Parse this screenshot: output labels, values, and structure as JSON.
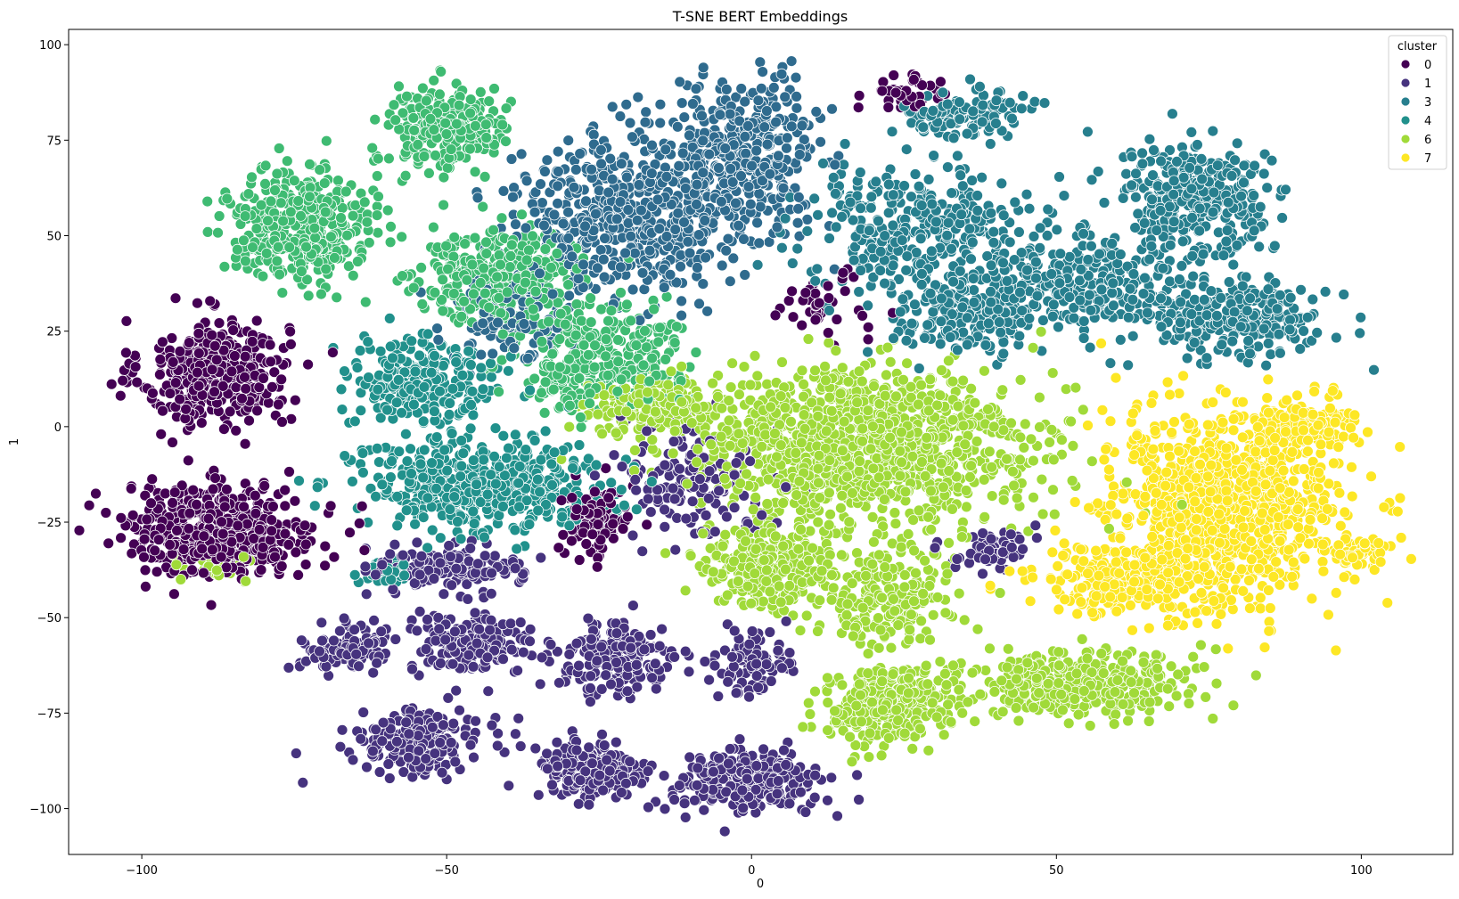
{
  "chart_data": {
    "type": "scatter",
    "title": "T-SNE BERT Embeddings",
    "xlabel": "0",
    "ylabel": "1",
    "xlim": [
      -112,
      115
    ],
    "ylim": [
      -112,
      104
    ],
    "xticks": [
      -100,
      -50,
      0,
      50,
      100
    ],
    "yticks": [
      -100,
      -75,
      -50,
      -25,
      0,
      25,
      50,
      75,
      100
    ],
    "xtick_labels": [
      "−100",
      "−50",
      "0",
      "50",
      "100"
    ],
    "ytick_labels": [
      "−100",
      "−75",
      "−50",
      "−25",
      "0",
      "25",
      "50",
      "75",
      "100"
    ],
    "grid": false,
    "legend": {
      "title": "cluster",
      "placement": "top-right",
      "entries": [
        {
          "label": "0",
          "color": "#440154"
        },
        {
          "label": "1",
          "color": "#46337e"
        },
        {
          "label": "3",
          "color": "#277f8e"
        },
        {
          "label": "4",
          "color": "#21918c"
        },
        {
          "label": "6",
          "color": "#a0da39"
        },
        {
          "label": "7",
          "color": "#fde725"
        }
      ]
    },
    "series": [
      {
        "name": "0",
        "color": "#440154",
        "clusters": [
          {
            "cx": -88,
            "cy": 14,
            "sx": 6,
            "sy": 7,
            "n": 380
          },
          {
            "cx": -87,
            "cy": -27,
            "sx": 8,
            "sy": 6,
            "n": 460
          },
          {
            "cx": -25,
            "cy": -25,
            "sx": 3,
            "sy": 5,
            "n": 90
          },
          {
            "cx": 25,
            "cy": 87,
            "sx": 4,
            "sy": 3,
            "n": 40
          },
          {
            "cx": 12,
            "cy": 32,
            "sx": 4,
            "sy": 4,
            "n": 40
          }
        ]
      },
      {
        "name": "1",
        "color": "#46337e",
        "clusters": [
          {
            "cx": -50,
            "cy": -37,
            "sx": 6,
            "sy": 3,
            "n": 150
          },
          {
            "cx": -66,
            "cy": -58,
            "sx": 4,
            "sy": 3,
            "n": 100
          },
          {
            "cx": -46,
            "cy": -57,
            "sx": 5,
            "sy": 4,
            "n": 170
          },
          {
            "cx": -54,
            "cy": -82,
            "sx": 5,
            "sy": 4,
            "n": 200
          },
          {
            "cx": -27,
            "cy": -90,
            "sx": 4,
            "sy": 4,
            "n": 220
          },
          {
            "cx": -1,
            "cy": -93,
            "sx": 7,
            "sy": 4,
            "n": 270
          },
          {
            "cx": -22,
            "cy": -61,
            "sx": 5,
            "sy": 5,
            "n": 180
          },
          {
            "cx": 0,
            "cy": -62,
            "sx": 3,
            "sy": 4,
            "n": 90
          },
          {
            "cx": -10,
            "cy": -13,
            "sx": 6,
            "sy": 8,
            "n": 150
          },
          {
            "cx": 40,
            "cy": -32,
            "sx": 3,
            "sy": 3,
            "n": 60
          }
        ]
      },
      {
        "name": "3",
        "color": "#2f6b8e",
        "clusters": [
          {
            "cx": -20,
            "cy": 56,
            "sx": 9,
            "sy": 11,
            "n": 600
          },
          {
            "cx": 0,
            "cy": 72,
            "sx": 6,
            "sy": 9,
            "n": 350
          },
          {
            "cx": -40,
            "cy": 30,
            "sx": 5,
            "sy": 6,
            "n": 120
          }
        ]
      },
      {
        "name": "3",
        "color": "#277f8e",
        "clusters": [
          {
            "cx": 28,
            "cy": 52,
            "sx": 10,
            "sy": 8,
            "n": 350
          },
          {
            "cx": 55,
            "cy": 37,
            "sx": 10,
            "sy": 6,
            "n": 300
          },
          {
            "cx": 73,
            "cy": 60,
            "sx": 6,
            "sy": 7,
            "n": 330
          },
          {
            "cx": 80,
            "cy": 28,
            "sx": 7,
            "sy": 5,
            "n": 250
          },
          {
            "cx": 35,
            "cy": 82,
            "sx": 5,
            "sy": 3,
            "n": 120
          },
          {
            "cx": 35,
            "cy": 28,
            "sx": 6,
            "sy": 5,
            "n": 170
          }
        ]
      },
      {
        "name": "4",
        "color": "#21918c",
        "clusters": [
          {
            "cx": -54,
            "cy": 12,
            "sx": 6,
            "sy": 6,
            "n": 250
          },
          {
            "cx": -45,
            "cy": -16,
            "sx": 10,
            "sy": 6,
            "n": 500
          },
          {
            "cx": -60,
            "cy": -38,
            "sx": 2,
            "sy": 2,
            "n": 40
          }
        ]
      },
      {
        "name": "4",
        "color": "#3fbb72",
        "clusters": [
          {
            "cx": -74,
            "cy": 52,
            "sx": 6,
            "sy": 7,
            "n": 420
          },
          {
            "cx": -50,
            "cy": 78,
            "sx": 5,
            "sy": 5,
            "n": 240
          },
          {
            "cx": -42,
            "cy": 40,
            "sx": 7,
            "sy": 6,
            "n": 300
          },
          {
            "cx": -25,
            "cy": 18,
            "sx": 7,
            "sy": 7,
            "n": 320
          }
        ]
      },
      {
        "name": "6",
        "color": "#a0da39",
        "clusters": [
          {
            "cx": 18,
            "cy": -5,
            "sx": 14,
            "sy": 10,
            "n": 1200
          },
          {
            "cx": 3,
            "cy": -37,
            "sx": 6,
            "sy": 6,
            "n": 280
          },
          {
            "cx": 22,
            "cy": -73,
            "sx": 5,
            "sy": 5,
            "n": 330
          },
          {
            "cx": 22,
            "cy": -45,
            "sx": 5,
            "sy": 7,
            "n": 200
          },
          {
            "cx": 53,
            "cy": -67,
            "sx": 9,
            "sy": 4,
            "n": 450
          },
          {
            "cx": -15,
            "cy": 5,
            "sx": 6,
            "sy": 4,
            "n": 180
          },
          {
            "cx": -88,
            "cy": -37,
            "sx": 3,
            "sy": 2,
            "n": 30
          }
        ]
      },
      {
        "name": "7",
        "color": "#fde725",
        "clusters": [
          {
            "cx": 78,
            "cy": -20,
            "sx": 10,
            "sy": 12,
            "n": 900
          },
          {
            "cx": 65,
            "cy": -40,
            "sx": 9,
            "sy": 5,
            "n": 300
          },
          {
            "cx": 90,
            "cy": 0,
            "sx": 5,
            "sy": 3,
            "n": 120
          },
          {
            "cx": 100,
            "cy": -33,
            "sx": 2,
            "sy": 2,
            "n": 60
          }
        ]
      }
    ]
  }
}
